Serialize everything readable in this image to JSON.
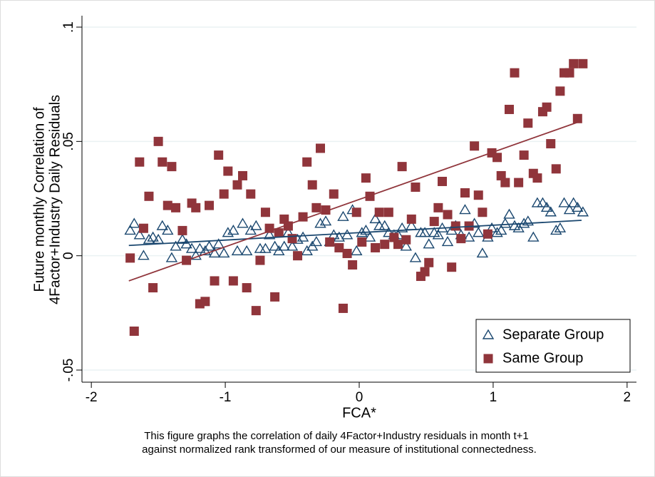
{
  "chart_data": {
    "type": "scatter",
    "ylabel": [
      "Future monthly Correlation of",
      "4Factor+Industry Daily Residuals"
    ],
    "xlabel": "FCA*",
    "caption": [
      "This figure graphs the correlation of daily 4Factor+Industry residuals in month t+1",
      "against normalized rank transformed of our measure of institutional connectedness."
    ],
    "xlim": [
      -2.07,
      2.07
    ],
    "ylim": [
      -0.0553,
      0.105
    ],
    "xticks": [
      -2,
      -1,
      0,
      1,
      2
    ],
    "yticks": [
      {
        "value": -0.05,
        "label": "-.05"
      },
      0,
      {
        "value": 0.05,
        "label": ".05"
      },
      {
        "value": 0.1,
        "label": ".1"
      }
    ],
    "grid": true,
    "legend": "lower right",
    "x": [
      -1.71,
      -1.68,
      -1.64,
      -1.61,
      -1.57,
      -1.54,
      -1.5,
      -1.47,
      -1.43,
      -1.4,
      -1.37,
      -1.32,
      -1.29,
      -1.25,
      -1.22,
      -1.19,
      -1.15,
      -1.12,
      -1.08,
      -1.05,
      -1.01,
      -0.98,
      -0.94,
      -0.91,
      -0.87,
      -0.84,
      -0.81,
      -0.77,
      -0.74,
      -0.7,
      -0.67,
      -0.63,
      -0.6,
      -0.56,
      -0.53,
      -0.5,
      -0.46,
      -0.42,
      -0.39,
      -0.35,
      -0.32,
      -0.29,
      -0.25,
      -0.22,
      -0.19,
      -0.15,
      -0.12,
      -0.09,
      -0.05,
      -0.02,
      0.02,
      0.05,
      0.08,
      0.12,
      0.15,
      0.19,
      0.22,
      0.26,
      0.29,
      0.32,
      0.35,
      0.39,
      0.42,
      0.46,
      0.49,
      0.52,
      0.56,
      0.59,
      0.62,
      0.66,
      0.69,
      0.72,
      0.76,
      0.79,
      0.82,
      0.86,
      0.89,
      0.92,
      0.96,
      0.99,
      1.03,
      1.06,
      1.09,
      1.12,
      1.16,
      1.19,
      1.23,
      1.26,
      1.3,
      1.33,
      1.37,
      1.4,
      1.43,
      1.47,
      1.5,
      1.53,
      1.57,
      1.6,
      1.63,
      1.67
    ],
    "series": [
      {
        "name": "Separate Group",
        "color": "#1a476f",
        "marker": "triangle",
        "values": [
          0.011,
          0.014,
          0.009,
          0.0,
          0.007,
          0.008,
          0.007,
          0.013,
          0.011,
          -0.001,
          0.004,
          0.007,
          0.005,
          0.003,
          0.0,
          0.003,
          0.002,
          0.004,
          0.001,
          0.005,
          0.001,
          0.01,
          0.011,
          0.002,
          0.014,
          0.002,
          0.011,
          0.013,
          0.003,
          0.003,
          0.009,
          0.004,
          0.002,
          0.004,
          0.01,
          0.004,
          0.007,
          0.008,
          0.002,
          0.004,
          0.006,
          0.014,
          0.015,
          0.006,
          0.009,
          0.008,
          0.017,
          0.009,
          0.02,
          0.002,
          0.01,
          0.011,
          0.008,
          0.016,
          0.013,
          0.013,
          0.01,
          0.009,
          0.009,
          0.012,
          0.004,
          0.013,
          -0.001,
          0.01,
          0.01,
          0.005,
          0.01,
          0.009,
          0.012,
          0.006,
          0.011,
          0.013,
          0.009,
          0.02,
          0.008,
          0.014,
          0.01,
          0.001,
          0.008,
          0.012,
          0.01,
          0.011,
          0.014,
          0.018,
          0.013,
          0.012,
          0.014,
          0.015,
          0.008,
          0.023,
          0.023,
          0.021,
          0.019,
          0.011,
          0.012,
          0.023,
          0.02,
          0.023,
          0.021,
          0.019
        ]
      },
      {
        "name": "Same Group",
        "color": "#90353b",
        "marker": "square",
        "values": [
          -0.001,
          -0.033,
          0.041,
          0.012,
          0.026,
          -0.014,
          0.05,
          0.041,
          0.022,
          0.039,
          0.021,
          0.011,
          -0.002,
          0.023,
          0.021,
          -0.021,
          -0.02,
          0.022,
          -0.011,
          0.044,
          0.027,
          0.037,
          -0.011,
          0.031,
          0.035,
          -0.014,
          0.027,
          -0.024,
          -0.002,
          0.019,
          0.012,
          -0.018,
          0.01,
          0.016,
          0.013,
          0.0075,
          0.0,
          0.017,
          0.041,
          0.031,
          0.021,
          0.047,
          0.02,
          0.006,
          0.027,
          0.0035,
          -0.023,
          0.001,
          -0.004,
          0.019,
          0.006,
          0.034,
          0.026,
          0.0035,
          0.019,
          0.005,
          0.019,
          0.008,
          0.005,
          0.039,
          0.007,
          0.016,
          0.03,
          -0.009,
          -0.007,
          -0.003,
          0.015,
          0.021,
          0.0325,
          0.018,
          -0.005,
          0.013,
          0.0075,
          0.0275,
          0.013,
          0.048,
          0.0265,
          0.019,
          0.0095,
          0.045,
          0.043,
          0.035,
          0.032,
          0.064,
          0.08,
          0.032,
          0.044,
          0.058,
          0.036,
          0.034,
          0.063,
          0.065,
          0.049,
          0.038,
          0.072,
          0.08,
          0.08,
          0.084,
          0.06,
          0.084
        ]
      }
    ],
    "fit_lines": [
      {
        "color": "#1a476f",
        "x": [
          -1.72,
          1.66
        ],
        "y": [
          0.0045,
          0.0155
        ]
      },
      {
        "color": "#90353b",
        "x": [
          -1.72,
          1.66
        ],
        "y": [
          -0.011,
          0.059
        ]
      }
    ]
  }
}
